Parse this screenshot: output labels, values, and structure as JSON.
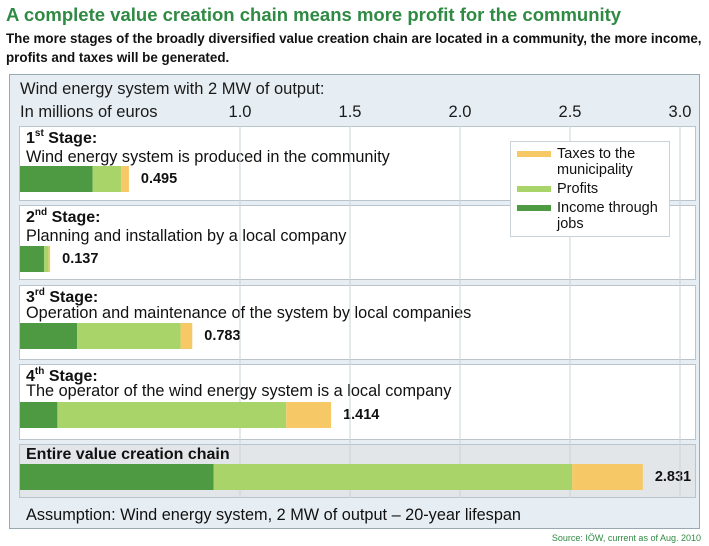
{
  "title": "A complete value creation chain means more profit for the community",
  "subtitle": "The more stages of the broadly diversified value creation chain are located in a community, the more income, profits and taxes will be generated.",
  "colors": {
    "title": "#2f8a43",
    "income": "#4e9a43",
    "profits": "#a9d46a",
    "taxes": "#f6c866",
    "panel": "#e7eef3"
  },
  "chart_data": {
    "type": "bar",
    "orientation": "horizontal",
    "stacked": true,
    "heading": "Wind energy system with 2 MW of output:",
    "unit_label": "In millions of euros",
    "xlim": [
      0,
      3.0
    ],
    "x_ticks": [
      "1.0",
      "1.5",
      "2.0",
      "2.5",
      "3.0"
    ],
    "grid": true,
    "legend_position": "top-right",
    "legend": [
      "Taxes to the municipality",
      "Profits",
      "Income through jobs"
    ],
    "categories": [
      {
        "ordinal": "1",
        "ordinal_suffix": "st",
        "stage_word": "Stage:",
        "description": "Wind energy system is produced in the community",
        "total_label": "0.495"
      },
      {
        "ordinal": "2",
        "ordinal_suffix": "nd",
        "stage_word": "Stage:",
        "description": "Planning and installation by a local company",
        "total_label": "0.137"
      },
      {
        "ordinal": "3",
        "ordinal_suffix": "rd",
        "stage_word": "Stage:",
        "description": "Operation and maintenance of the system by local companies",
        "total_label": "0.783"
      },
      {
        "ordinal": "4",
        "ordinal_suffix": "th",
        "stage_word": "Stage:",
        "description": "The operator of the wind energy system is a local company",
        "total_label": "1.414"
      },
      {
        "ordinal": "",
        "ordinal_suffix": "",
        "stage_word": "Entire value creation chain",
        "description": "",
        "total_label": "2.831"
      }
    ],
    "totals": [
      0.495,
      0.137,
      0.783,
      1.414,
      2.831
    ],
    "series": [
      {
        "name": "Income through jobs",
        "values": [
          0.33,
          0.11,
          0.26,
          0.17,
          0.88
        ]
      },
      {
        "name": "Profits",
        "values": [
          0.13,
          0.02,
          0.47,
          1.04,
          1.63
        ]
      },
      {
        "name": "Taxes to the municipality",
        "values": [
          0.035,
          0.007,
          0.053,
          0.204,
          0.321
        ]
      }
    ]
  },
  "footer": {
    "assumption": "Assumption: Wind energy system, 2 MW of output – 20-year lifespan",
    "source": "Source: IÖW, current as of Aug. 2010"
  }
}
